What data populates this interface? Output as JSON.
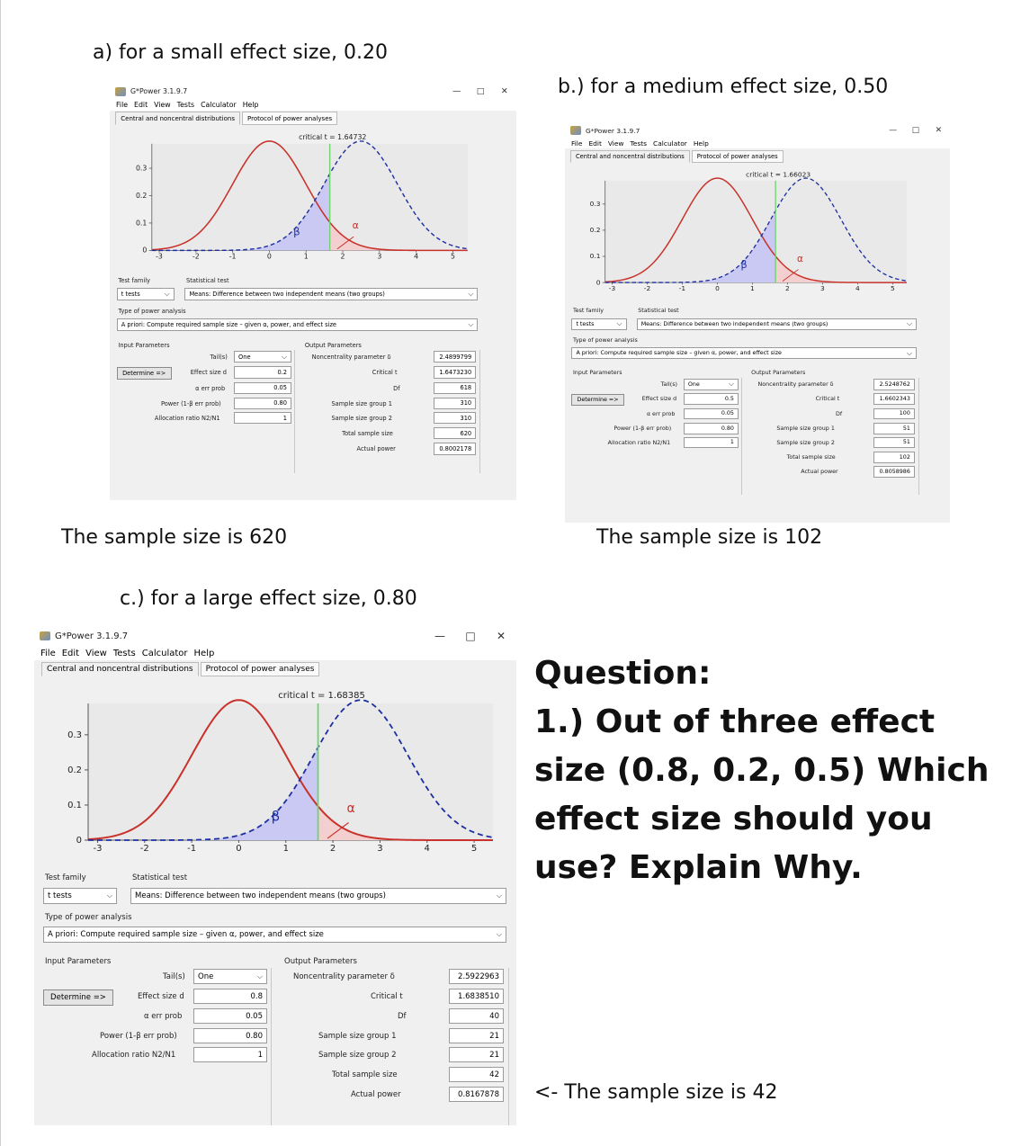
{
  "captions": {
    "a_title": "a)  for a small effect size, 0.20",
    "b_title": "b.) for a medium effect size,  0.50",
    "c_title": "c.) for a large effect size,  0.80",
    "a_result": "The sample size is 620",
    "b_result": "The sample size is 102",
    "c_result": "<- The sample size is 42"
  },
  "question": {
    "heading": "Question:",
    "body": "1.)  Out of three effect size (0.8, 0.2, 0.5) Which effect size should you use? Explain Why."
  },
  "window": {
    "title": "G*Power 3.1.9.7",
    "menu": [
      "File",
      "Edit",
      "View",
      "Tests",
      "Calculator",
      "Help"
    ],
    "tabs": [
      "Central and noncentral distributions",
      "Protocol of power analyses"
    ],
    "minimize": "—",
    "maximize": "□",
    "close": "✕",
    "x_ticks": [
      "-3",
      "-2",
      "-1",
      "0",
      "1",
      "2",
      "3",
      "4",
      "5"
    ],
    "y_ticks": [
      "0.3",
      "0.2",
      "0.1",
      "0"
    ],
    "beta_symbol": "β",
    "alpha_symbol": "α",
    "labels": {
      "test_family": "Test family",
      "statistical_test": "Statistical test",
      "type_of_power_analysis": "Type of power analysis",
      "input_parameters": "Input Parameters",
      "output_parameters": "Output Parameters",
      "tails": "Tail(s)",
      "determine": "Determine =>",
      "effect_size": "Effect size d",
      "alpha_err": "α err prob",
      "power": "Power (1-β err prob)",
      "allocation": "Allocation ratio N2/N1",
      "noncentrality": "Noncentrality parameter δ",
      "critical_t": "Critical t",
      "df": "Df",
      "group1": "Sample size group 1",
      "group2": "Sample size group 2",
      "total": "Total sample size",
      "actual_power": "Actual power"
    },
    "values": {
      "test_family": "t tests",
      "statistical_test": "Means: Difference between two independent means (two groups)",
      "analysis_type": "A priori: Compute required sample size – given α, power, and effect size",
      "tails": "One",
      "alpha": "0.05",
      "power": "0.80",
      "allocation": "1"
    }
  },
  "panels": [
    {
      "id": "a",
      "critical_label": "critical t = 1.64732",
      "critical_t": 1.64732,
      "noncentrality": 2.4899799,
      "effect_size": "0.2",
      "outputs": {
        "noncentrality": "2.4899799",
        "critical_t": "1.6473230",
        "df": "618",
        "group1": "310",
        "group2": "310",
        "total": "620",
        "actual_power": "0.8002178"
      }
    },
    {
      "id": "b",
      "critical_label": "critical t = 1.66023",
      "critical_t": 1.66023,
      "noncentrality": 2.5248762,
      "effect_size": "0.5",
      "outputs": {
        "noncentrality": "2.5248762",
        "critical_t": "1.6602343",
        "df": "100",
        "group1": "51",
        "group2": "51",
        "total": "102",
        "actual_power": "0.8058986"
      }
    },
    {
      "id": "c",
      "critical_label": "critical t = 1.68385",
      "critical_t": 1.68385,
      "noncentrality": 2.5922963,
      "effect_size": "0.8",
      "outputs": {
        "noncentrality": "2.5922963",
        "critical_t": "1.6838510",
        "df": "40",
        "group1": "21",
        "group2": "21",
        "total": "42",
        "actual_power": "0.8167878"
      }
    }
  ]
}
